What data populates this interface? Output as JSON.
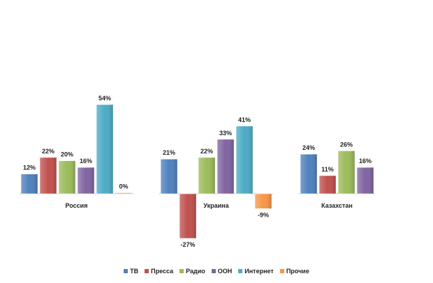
{
  "chart_data": {
    "type": "bar",
    "categories": [
      "Россия",
      "Украина",
      "Казахстан"
    ],
    "series": [
      {
        "name": "ТВ",
        "color": "#4f81bd",
        "values": [
          12,
          21,
          24
        ],
        "labels": [
          "12%",
          "21%",
          "24%"
        ]
      },
      {
        "name": "Пресса",
        "color": "#c0504d",
        "values": [
          22,
          -27,
          11
        ],
        "labels": [
          "22%",
          "-27%",
          "11%"
        ]
      },
      {
        "name": "Радио",
        "color": "#9bbb59",
        "values": [
          20,
          22,
          26
        ],
        "labels": [
          "20%",
          "22%",
          "26%"
        ]
      },
      {
        "name": "ООН",
        "color": "#8064a2",
        "values": [
          16,
          33,
          16
        ],
        "labels": [
          "16%",
          "33%",
          "16%"
        ]
      },
      {
        "name": "Интернет",
        "color": "#4bacc6",
        "values": [
          54,
          41,
          null
        ],
        "labels": [
          "54%",
          "41%",
          null
        ]
      },
      {
        "name": "Прочие",
        "color": "#f79646",
        "values": [
          0,
          -9,
          null
        ],
        "labels": [
          "0%",
          "-9%",
          null
        ]
      }
    ],
    "ylim": [
      -30,
      60
    ],
    "grid": false,
    "legend_position": "bottom"
  }
}
